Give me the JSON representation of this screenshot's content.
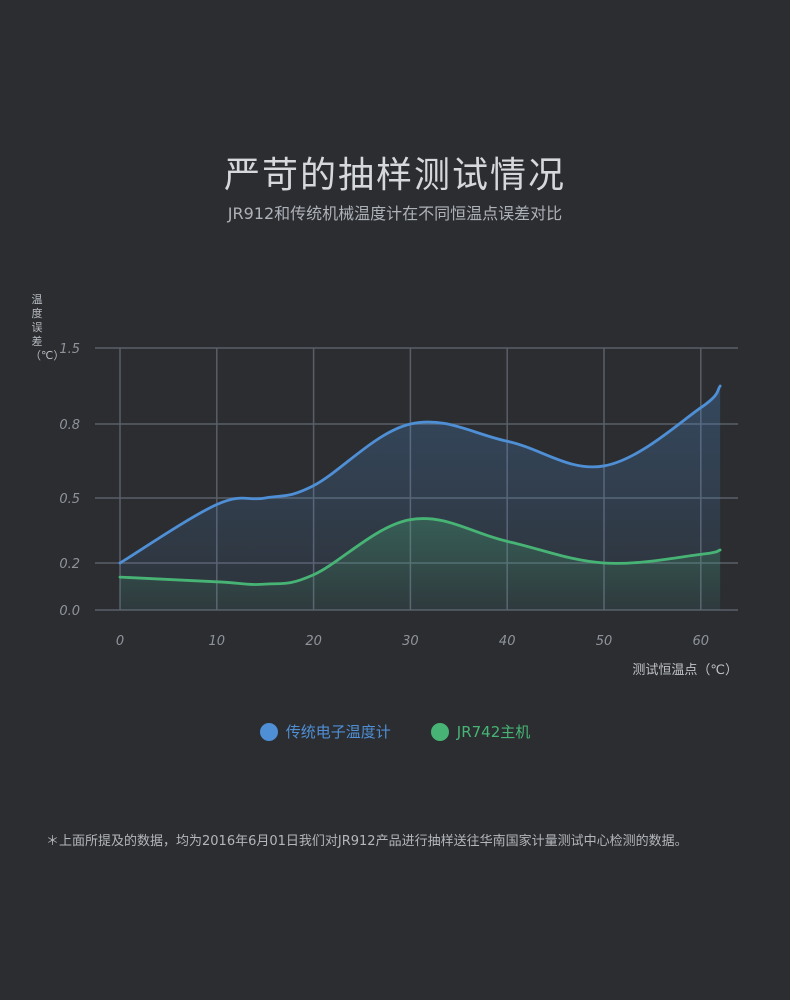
{
  "header": {
    "title": "严苛的抽样测试情况",
    "subtitle": "JR912和传统机械温度计在不同恒温点误差对比"
  },
  "footnote": "＊上面所提及的数据，均为2016年6月01日我们对JR912产品进行抽样送往华南国家计量测试中心检测的数据。",
  "colors": {
    "blue": "#4f8fd6",
    "green": "#47b475",
    "grid": "#5a5e68",
    "bg": "#2b2d30"
  },
  "chart_data": {
    "type": "line",
    "title": "严苛的抽样测试情况",
    "subtitle": "JR912和传统机械温度计在不同恒温点误差对比",
    "xlabel": "测试恒温点（℃）",
    "ylabel": "温度误差（℃）",
    "x_ticks": [
      "0",
      "10",
      "20",
      "30",
      "40",
      "50",
      "60"
    ],
    "y_ticks": [
      "0.0",
      "0.2",
      "0.5",
      "0.8",
      "1.5"
    ],
    "y_tick_values": [
      0.0,
      0.2,
      0.5,
      0.8,
      1.5
    ],
    "xlim": [
      0,
      62
    ],
    "grid": true,
    "legend_position": "bottom-center",
    "series": [
      {
        "name": "传统电子温度计",
        "color": "#4f8fd6",
        "x": [
          0,
          10,
          15,
          20,
          30,
          40,
          50,
          60,
          62
        ],
        "y": [
          0.2,
          0.47,
          0.5,
          0.55,
          0.8,
          0.73,
          0.63,
          0.95,
          1.15
        ]
      },
      {
        "name": "JR742主机",
        "color": "#47b475",
        "x": [
          0,
          10,
          15,
          20,
          30,
          40,
          50,
          60,
          62
        ],
        "y": [
          0.14,
          0.12,
          0.11,
          0.15,
          0.4,
          0.3,
          0.2,
          0.24,
          0.26
        ]
      }
    ]
  }
}
